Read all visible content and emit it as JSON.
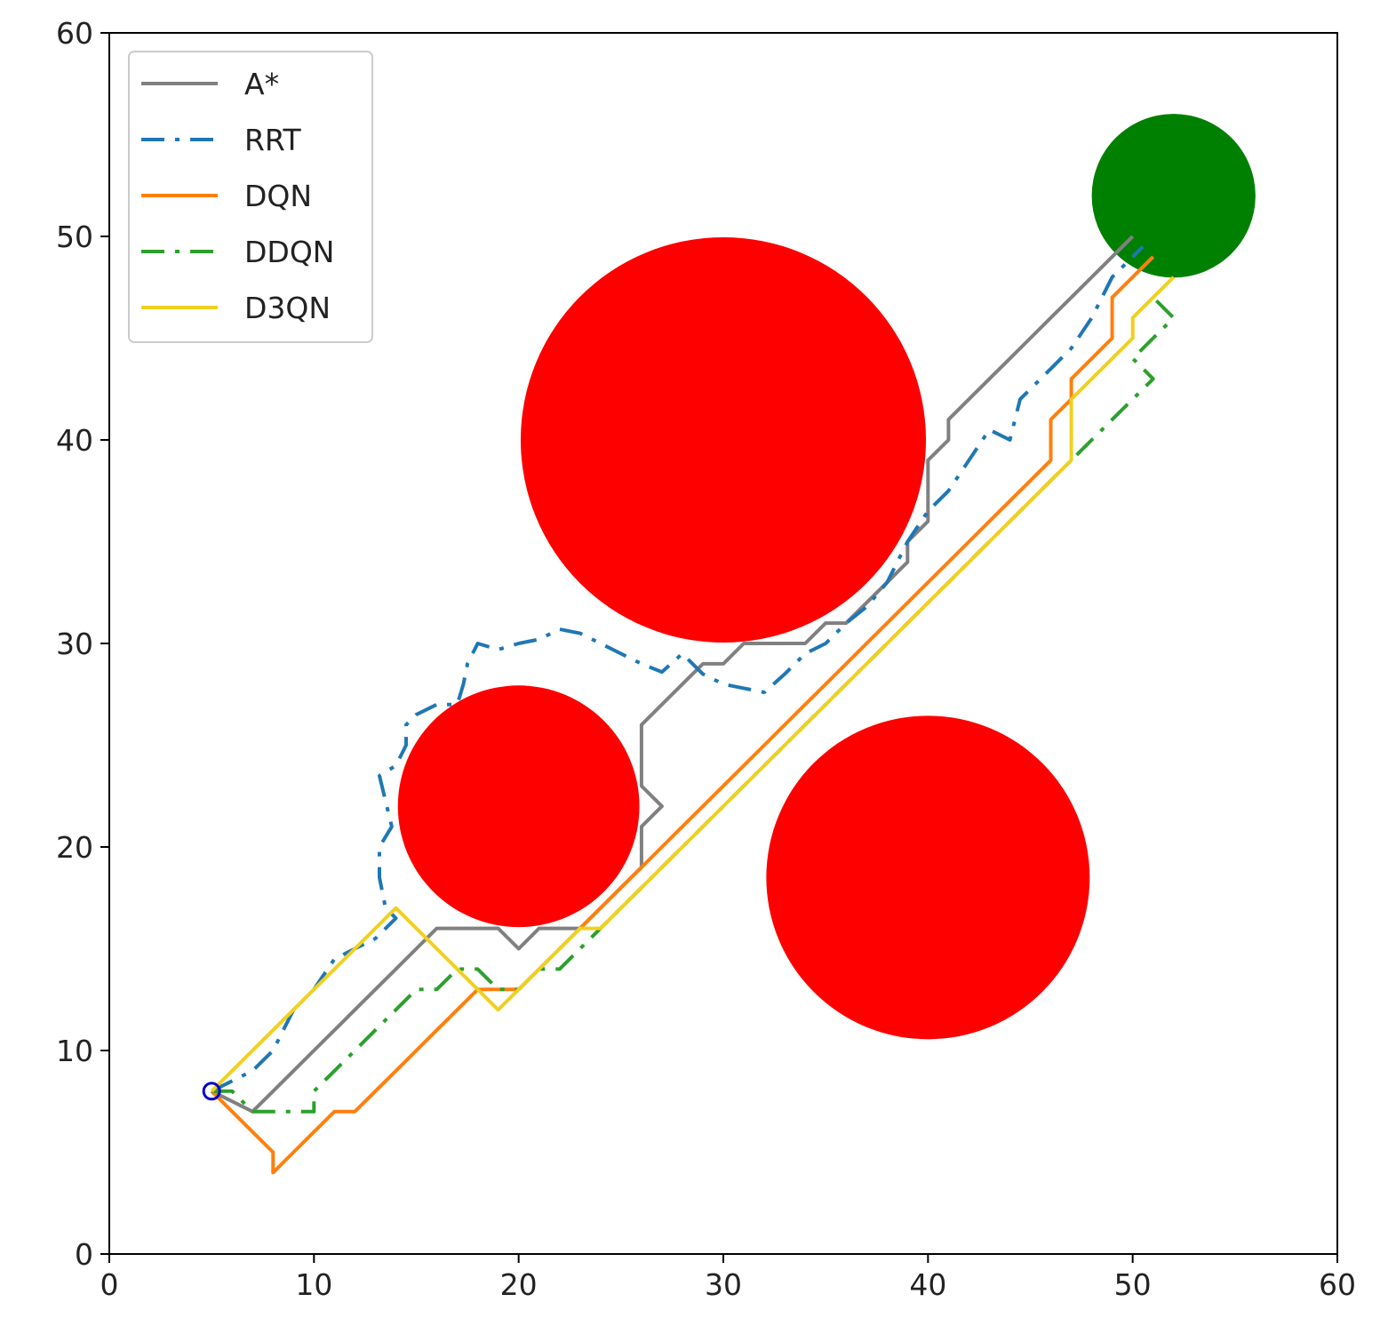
{
  "chart_data": {
    "type": "line",
    "title": "",
    "xlabel": "",
    "ylabel": "",
    "xlim": [
      0,
      60
    ],
    "ylim": [
      0,
      60
    ],
    "xticks": [
      0,
      10,
      20,
      30,
      40,
      50,
      60
    ],
    "yticks": [
      0,
      10,
      20,
      30,
      40,
      50,
      60
    ],
    "grid": false,
    "legend": "top-left",
    "obstacles": [
      {
        "cx": 30,
        "cy": 40,
        "r": 9.9,
        "color": "#ff0000"
      },
      {
        "cx": 20,
        "cy": 22,
        "r": 5.9,
        "color": "#ff0000"
      },
      {
        "cx": 40,
        "cy": 18.5,
        "r": 7.9,
        "color": "#ff0000"
      }
    ],
    "goal": {
      "cx": 52,
      "cy": 52,
      "r": 4,
      "color": "#008000"
    },
    "start": {
      "x": 5,
      "y": 8,
      "color": "#0000cc"
    },
    "series": [
      {
        "name": "A*",
        "color": "#808080",
        "dash": "solid",
        "points": [
          [
            5,
            8
          ],
          [
            7,
            7
          ],
          [
            8,
            8
          ],
          [
            9,
            9
          ],
          [
            10,
            10
          ],
          [
            11,
            11
          ],
          [
            12,
            12
          ],
          [
            13,
            13
          ],
          [
            14,
            14
          ],
          [
            15,
            15
          ],
          [
            16,
            16
          ],
          [
            19,
            16
          ],
          [
            20,
            15
          ],
          [
            21,
            16
          ],
          [
            23,
            16
          ],
          [
            24,
            17
          ],
          [
            25,
            18
          ],
          [
            26,
            19
          ],
          [
            26,
            21
          ],
          [
            27,
            22
          ],
          [
            26,
            23
          ],
          [
            26,
            26
          ],
          [
            27,
            27
          ],
          [
            28,
            28
          ],
          [
            29,
            29
          ],
          [
            30,
            29
          ],
          [
            31,
            30
          ],
          [
            34,
            30
          ],
          [
            35,
            31
          ],
          [
            36,
            31
          ],
          [
            37,
            32
          ],
          [
            38,
            33
          ],
          [
            39,
            34
          ],
          [
            39,
            35
          ],
          [
            40,
            36
          ],
          [
            40,
            39
          ],
          [
            41,
            40
          ],
          [
            41,
            41
          ],
          [
            42,
            42
          ],
          [
            43,
            43
          ],
          [
            44,
            44
          ],
          [
            45,
            45
          ],
          [
            46,
            46
          ],
          [
            47,
            47
          ],
          [
            48,
            48
          ],
          [
            49,
            49
          ],
          [
            50,
            50
          ]
        ]
      },
      {
        "name": "RRT",
        "color": "#1f77b4",
        "dash": "dashdot",
        "points": [
          [
            5,
            8
          ],
          [
            6,
            8.5
          ],
          [
            7,
            9
          ],
          [
            8,
            10
          ],
          [
            8.5,
            11
          ],
          [
            9,
            12
          ],
          [
            10,
            13
          ],
          [
            11,
            14.5
          ],
          [
            12,
            15
          ],
          [
            13,
            15.5
          ],
          [
            14,
            16.5
          ],
          [
            13.5,
            17
          ],
          [
            13.2,
            18.5
          ],
          [
            13.2,
            20
          ],
          [
            13.8,
            21
          ],
          [
            13.2,
            23.5
          ],
          [
            14,
            24
          ],
          [
            14.5,
            25
          ],
          [
            14.5,
            26
          ],
          [
            15,
            26.5
          ],
          [
            16,
            27
          ],
          [
            17,
            27
          ],
          [
            17.3,
            28
          ],
          [
            17.5,
            29
          ],
          [
            18,
            30
          ],
          [
            19,
            29.7
          ],
          [
            20,
            30
          ],
          [
            21,
            30.2
          ],
          [
            22,
            30.7
          ],
          [
            23,
            30.5
          ],
          [
            24,
            30
          ],
          [
            25,
            29.5
          ],
          [
            26,
            29
          ],
          [
            27,
            28.6
          ],
          [
            28,
            29.5
          ],
          [
            29,
            28.5
          ],
          [
            30,
            28
          ],
          [
            31,
            27.8
          ],
          [
            32,
            27.6
          ],
          [
            33,
            28.5
          ],
          [
            34,
            29.5
          ],
          [
            35,
            30
          ],
          [
            36,
            31
          ],
          [
            37,
            31.8
          ],
          [
            38,
            33
          ],
          [
            39,
            35
          ],
          [
            40,
            36.5
          ],
          [
            41,
            37.5
          ],
          [
            42,
            39
          ],
          [
            43,
            40.5
          ],
          [
            44,
            40
          ],
          [
            44.5,
            42
          ],
          [
            45,
            42.5
          ],
          [
            46,
            43.5
          ],
          [
            47,
            44.5
          ],
          [
            48,
            46
          ],
          [
            49,
            48
          ],
          [
            50,
            49
          ],
          [
            50.5,
            49.5
          ]
        ]
      },
      {
        "name": "DQN",
        "color": "#ff7f0e",
        "dash": "solid",
        "points": [
          [
            5,
            8
          ],
          [
            6,
            7
          ],
          [
            7,
            6
          ],
          [
            8,
            5
          ],
          [
            8,
            4
          ],
          [
            9,
            5
          ],
          [
            10,
            6
          ],
          [
            11,
            7
          ],
          [
            12,
            7
          ],
          [
            13,
            8
          ],
          [
            14,
            9
          ],
          [
            15,
            10
          ],
          [
            16,
            11
          ],
          [
            17,
            12
          ],
          [
            18,
            13
          ],
          [
            19,
            13
          ],
          [
            20,
            13
          ],
          [
            21,
            14
          ],
          [
            22,
            15
          ],
          [
            23,
            16
          ],
          [
            24,
            17
          ],
          [
            25,
            18
          ],
          [
            26,
            19
          ],
          [
            27,
            20
          ],
          [
            28,
            21
          ],
          [
            29,
            22
          ],
          [
            30,
            23
          ],
          [
            31,
            24
          ],
          [
            32,
            25
          ],
          [
            33,
            26
          ],
          [
            34,
            27
          ],
          [
            35,
            28
          ],
          [
            36,
            29
          ],
          [
            37,
            30
          ],
          [
            38,
            31
          ],
          [
            39,
            32
          ],
          [
            40,
            33
          ],
          [
            41,
            34
          ],
          [
            42,
            35
          ],
          [
            43,
            36
          ],
          [
            44,
            37
          ],
          [
            45,
            38
          ],
          [
            46,
            39
          ],
          [
            46,
            41
          ],
          [
            47,
            42
          ],
          [
            47,
            43
          ],
          [
            48,
            44
          ],
          [
            49,
            45
          ],
          [
            49,
            47
          ],
          [
            50,
            48
          ],
          [
            51,
            49
          ]
        ]
      },
      {
        "name": "DDQN",
        "color": "#2ca02c",
        "dash": "dashdot",
        "points": [
          [
            5,
            8
          ],
          [
            6,
            8
          ],
          [
            7,
            7
          ],
          [
            8,
            7
          ],
          [
            9,
            7
          ],
          [
            10,
            7
          ],
          [
            10,
            8
          ],
          [
            11,
            9
          ],
          [
            12,
            10
          ],
          [
            13,
            11
          ],
          [
            14,
            12
          ],
          [
            15,
            13
          ],
          [
            16,
            13
          ],
          [
            17,
            14
          ],
          [
            18,
            14
          ],
          [
            19,
            13
          ],
          [
            20,
            13
          ],
          [
            21,
            14
          ],
          [
            22,
            14
          ],
          [
            23,
            15
          ],
          [
            24,
            16
          ],
          [
            25,
            17
          ],
          [
            26,
            18
          ],
          [
            27,
            19
          ],
          [
            28,
            20
          ],
          [
            29,
            21
          ],
          [
            30,
            22
          ],
          [
            31,
            23
          ],
          [
            32,
            24
          ],
          [
            33,
            25
          ],
          [
            34,
            26
          ],
          [
            35,
            27
          ],
          [
            36,
            28
          ],
          [
            37,
            29
          ],
          [
            38,
            30
          ],
          [
            39,
            31
          ],
          [
            40,
            32
          ],
          [
            41,
            33
          ],
          [
            42,
            34
          ],
          [
            43,
            35
          ],
          [
            44,
            36
          ],
          [
            45,
            37
          ],
          [
            46,
            38
          ],
          [
            47,
            39
          ],
          [
            48,
            40
          ],
          [
            49,
            41
          ],
          [
            50,
            42
          ],
          [
            51,
            43
          ],
          [
            50,
            44
          ],
          [
            51,
            45
          ],
          [
            52,
            46
          ],
          [
            51,
            47
          ]
        ]
      },
      {
        "name": "D3QN",
        "color": "#f0d020",
        "dash": "solid",
        "points": [
          [
            5,
            8
          ],
          [
            6,
            9
          ],
          [
            7,
            10
          ],
          [
            8,
            11
          ],
          [
            9,
            12
          ],
          [
            10,
            13
          ],
          [
            11,
            14
          ],
          [
            12,
            15
          ],
          [
            13,
            16
          ],
          [
            14,
            17
          ],
          [
            15,
            16
          ],
          [
            16,
            15
          ],
          [
            17,
            14
          ],
          [
            18,
            13
          ],
          [
            19,
            12
          ],
          [
            20,
            13
          ],
          [
            21,
            14
          ],
          [
            22,
            15
          ],
          [
            23,
            16
          ],
          [
            24,
            16
          ],
          [
            25,
            17
          ],
          [
            26,
            18
          ],
          [
            27,
            19
          ],
          [
            28,
            20
          ],
          [
            29,
            21
          ],
          [
            30,
            22
          ],
          [
            31,
            23
          ],
          [
            32,
            24
          ],
          [
            33,
            25
          ],
          [
            34,
            26
          ],
          [
            35,
            27
          ],
          [
            36,
            28
          ],
          [
            37,
            29
          ],
          [
            38,
            30
          ],
          [
            39,
            31
          ],
          [
            40,
            32
          ],
          [
            41,
            33
          ],
          [
            42,
            34
          ],
          [
            43,
            35
          ],
          [
            44,
            36
          ],
          [
            45,
            37
          ],
          [
            46,
            38
          ],
          [
            47,
            39
          ],
          [
            47,
            42
          ],
          [
            48,
            43
          ],
          [
            49,
            44
          ],
          [
            50,
            45
          ],
          [
            50,
            46
          ],
          [
            51,
            47
          ],
          [
            52,
            48
          ]
        ]
      }
    ]
  }
}
